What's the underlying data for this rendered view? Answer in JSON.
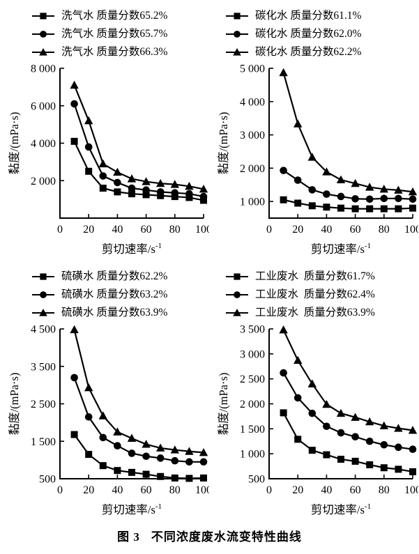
{
  "figure": {
    "caption_label": "图 3",
    "caption_title": "不同浓度废水流变特性曲线"
  },
  "chart_data": [
    {
      "id": "xiqishui",
      "type": "line",
      "legend_position": "top",
      "grid": false,
      "xlabel": "剪切速率/s⁻¹",
      "ylabel": "黏度/(mPa·s)",
      "xlim": [
        0,
        100
      ],
      "ylim": [
        0,
        8000
      ],
      "xticks": [
        0,
        20,
        40,
        60,
        80,
        100
      ],
      "yticks": [
        2000,
        4000,
        6000,
        8000
      ],
      "ytick_labels": [
        "2 000",
        "4 000",
        "6 000",
        "8 000"
      ],
      "x": [
        10,
        20,
        30,
        40,
        50,
        60,
        70,
        80,
        90,
        100
      ],
      "series": [
        {
          "name": "洗气水 质量分数65.2%",
          "marker": "square",
          "values": [
            4100,
            2500,
            1600,
            1400,
            1300,
            1250,
            1200,
            1150,
            1100,
            950
          ]
        },
        {
          "name": "洗气水 质量分数65.7%",
          "marker": "circle",
          "values": [
            6100,
            3800,
            2250,
            1900,
            1600,
            1500,
            1400,
            1350,
            1300,
            1150
          ]
        },
        {
          "name": "洗气水 质量分数66.3%",
          "marker": "triangle",
          "values": [
            7100,
            5200,
            2900,
            2450,
            2100,
            1950,
            1850,
            1800,
            1700,
            1550
          ]
        }
      ]
    },
    {
      "id": "tanhuashui",
      "type": "line",
      "legend_position": "top",
      "grid": false,
      "xlabel": "剪切速率/s⁻¹",
      "ylabel": "黏度/(mPa·s)",
      "xlim": [
        0,
        100
      ],
      "ylim": [
        500,
        5000
      ],
      "xticks": [
        0,
        20,
        40,
        60,
        80,
        100
      ],
      "yticks": [
        1000,
        2000,
        3000,
        4000,
        5000
      ],
      "ytick_labels": [
        "1 000",
        "2 000",
        "3 000",
        "4 000",
        "5 000"
      ],
      "x": [
        10,
        20,
        30,
        40,
        50,
        60,
        70,
        80,
        90,
        100
      ],
      "series": [
        {
          "name": "碳化水 质量分数61.1%",
          "marker": "square",
          "values": [
            1050,
            950,
            870,
            830,
            800,
            780,
            780,
            780,
            780,
            800
          ]
        },
        {
          "name": "碳化水 质量分数62.0%",
          "marker": "circle",
          "values": [
            1930,
            1640,
            1350,
            1220,
            1150,
            1080,
            1070,
            1090,
            1090,
            1070
          ]
        },
        {
          "name": "碳化水 质量分数62.2%",
          "marker": "triangle",
          "values": [
            4870,
            3330,
            2330,
            1890,
            1650,
            1540,
            1430,
            1370,
            1340,
            1290
          ]
        }
      ]
    },
    {
      "id": "liuhuangshui",
      "type": "line",
      "legend_position": "top",
      "grid": false,
      "xlabel": "剪切速率/s⁻¹",
      "ylabel": "黏度/(mPa·s)",
      "xlim": [
        0,
        100
      ],
      "ylim": [
        500,
        4500
      ],
      "xticks": [
        0,
        20,
        40,
        60,
        80,
        100
      ],
      "yticks": [
        500,
        1500,
        2500,
        3500,
        4500
      ],
      "ytick_labels": [
        "500",
        "1 500",
        "2 500",
        "3 500",
        "4 500"
      ],
      "x": [
        10,
        20,
        30,
        40,
        50,
        60,
        70,
        80,
        90,
        100
      ],
      "series": [
        {
          "name": "硫磺水 质量分数62.2%",
          "marker": "square",
          "values": [
            1680,
            1150,
            850,
            720,
            670,
            620,
            560,
            520,
            510,
            520
          ]
        },
        {
          "name": "硫磺水 质量分数63.2%",
          "marker": "circle",
          "values": [
            3200,
            2150,
            1600,
            1380,
            1180,
            1100,
            1050,
            980,
            950,
            950
          ]
        },
        {
          "name": "硫磺水 质量分数63.9%",
          "marker": "triangle",
          "values": [
            4480,
            2930,
            2180,
            1750,
            1580,
            1420,
            1320,
            1270,
            1230,
            1200
          ]
        }
      ]
    },
    {
      "id": "gongyefeishui",
      "type": "line",
      "legend_position": "top",
      "grid": false,
      "xlabel": "剪切速率/s⁻¹",
      "ylabel": "黏度/(mPa·s)",
      "xlim": [
        0,
        100
      ],
      "ylim": [
        500,
        3500
      ],
      "xticks": [
        0,
        20,
        40,
        60,
        80,
        100
      ],
      "yticks": [
        500,
        1000,
        1500,
        2000,
        2500,
        3000,
        3500
      ],
      "ytick_labels": [
        "500",
        "1 000",
        "1 500",
        "2 000",
        "2 500",
        "3 000",
        "3 500"
      ],
      "x": [
        10,
        20,
        30,
        40,
        50,
        60,
        70,
        80,
        90,
        100
      ],
      "series": [
        {
          "name": "工业废水  质量分数61.7%",
          "marker": "square",
          "values": [
            1820,
            1290,
            1070,
            980,
            890,
            850,
            780,
            720,
            690,
            640
          ]
        },
        {
          "name": "工业废水  质量分数62.4%",
          "marker": "circle",
          "values": [
            2620,
            2120,
            1810,
            1550,
            1420,
            1340,
            1250,
            1180,
            1130,
            1090
          ]
        },
        {
          "name": "工业废水  质量分数63.9%",
          "marker": "triangle",
          "values": [
            3480,
            2870,
            2400,
            1990,
            1810,
            1730,
            1640,
            1560,
            1510,
            1470
          ]
        }
      ]
    }
  ]
}
